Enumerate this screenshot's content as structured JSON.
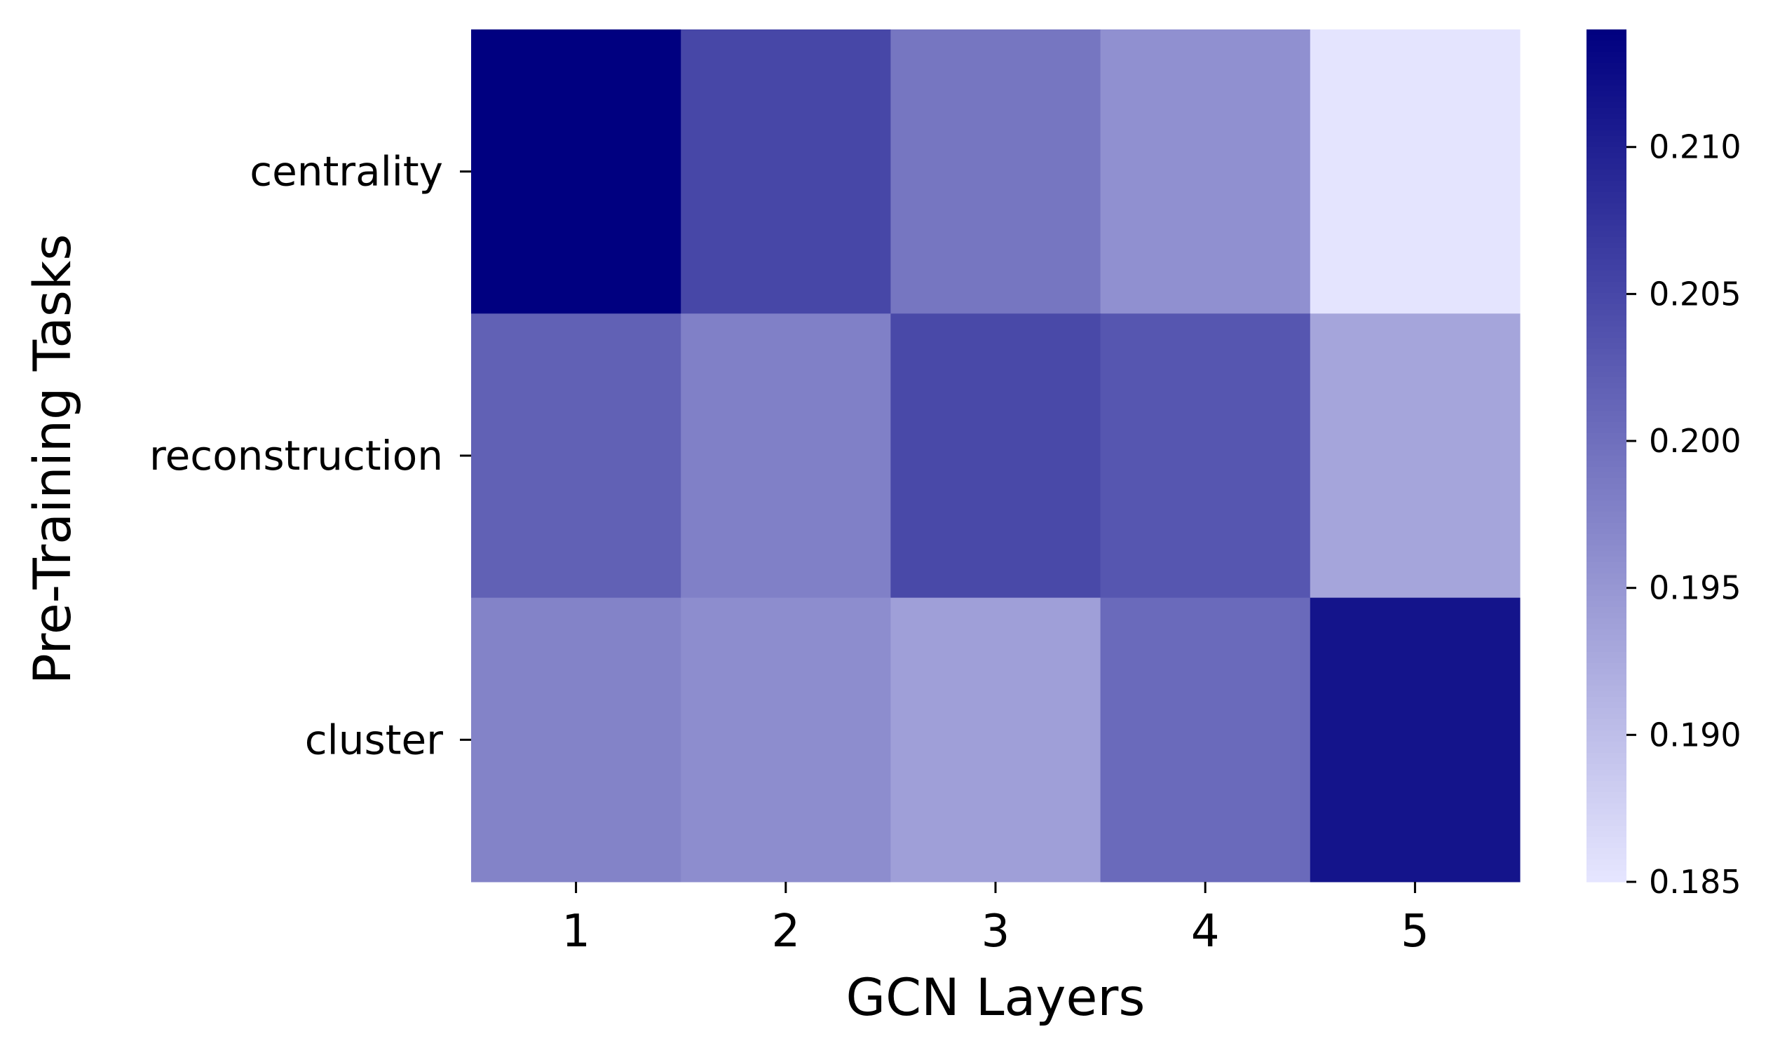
{
  "chart_data": {
    "type": "heatmap",
    "xlabel": "GCN Layers",
    "ylabel": "Pre-Training Tasks",
    "x_categories": [
      "1",
      "2",
      "3",
      "4",
      "5"
    ],
    "y_categories": [
      "centrality",
      "reconstruction",
      "cluster"
    ],
    "values": [
      [
        0.214,
        0.2051,
        0.1991,
        0.1958,
        0.1852
      ],
      [
        0.2018,
        0.1979,
        0.2048,
        0.2031,
        0.1932
      ],
      [
        0.1975,
        0.1962,
        0.194,
        0.2006,
        0.2115
      ]
    ],
    "colorbar": {
      "min": 0.185,
      "max": 0.214,
      "ticks": [
        0.185,
        0.19,
        0.195,
        0.2,
        0.205,
        0.21
      ],
      "tick_labels": [
        "0.185",
        "0.190",
        "0.195",
        "0.200",
        "0.205",
        "0.210"
      ]
    },
    "colormap": {
      "low_color": "#e6e6ff",
      "high_color": "#000080"
    },
    "grid": false,
    "legend": "colorbar-right"
  }
}
